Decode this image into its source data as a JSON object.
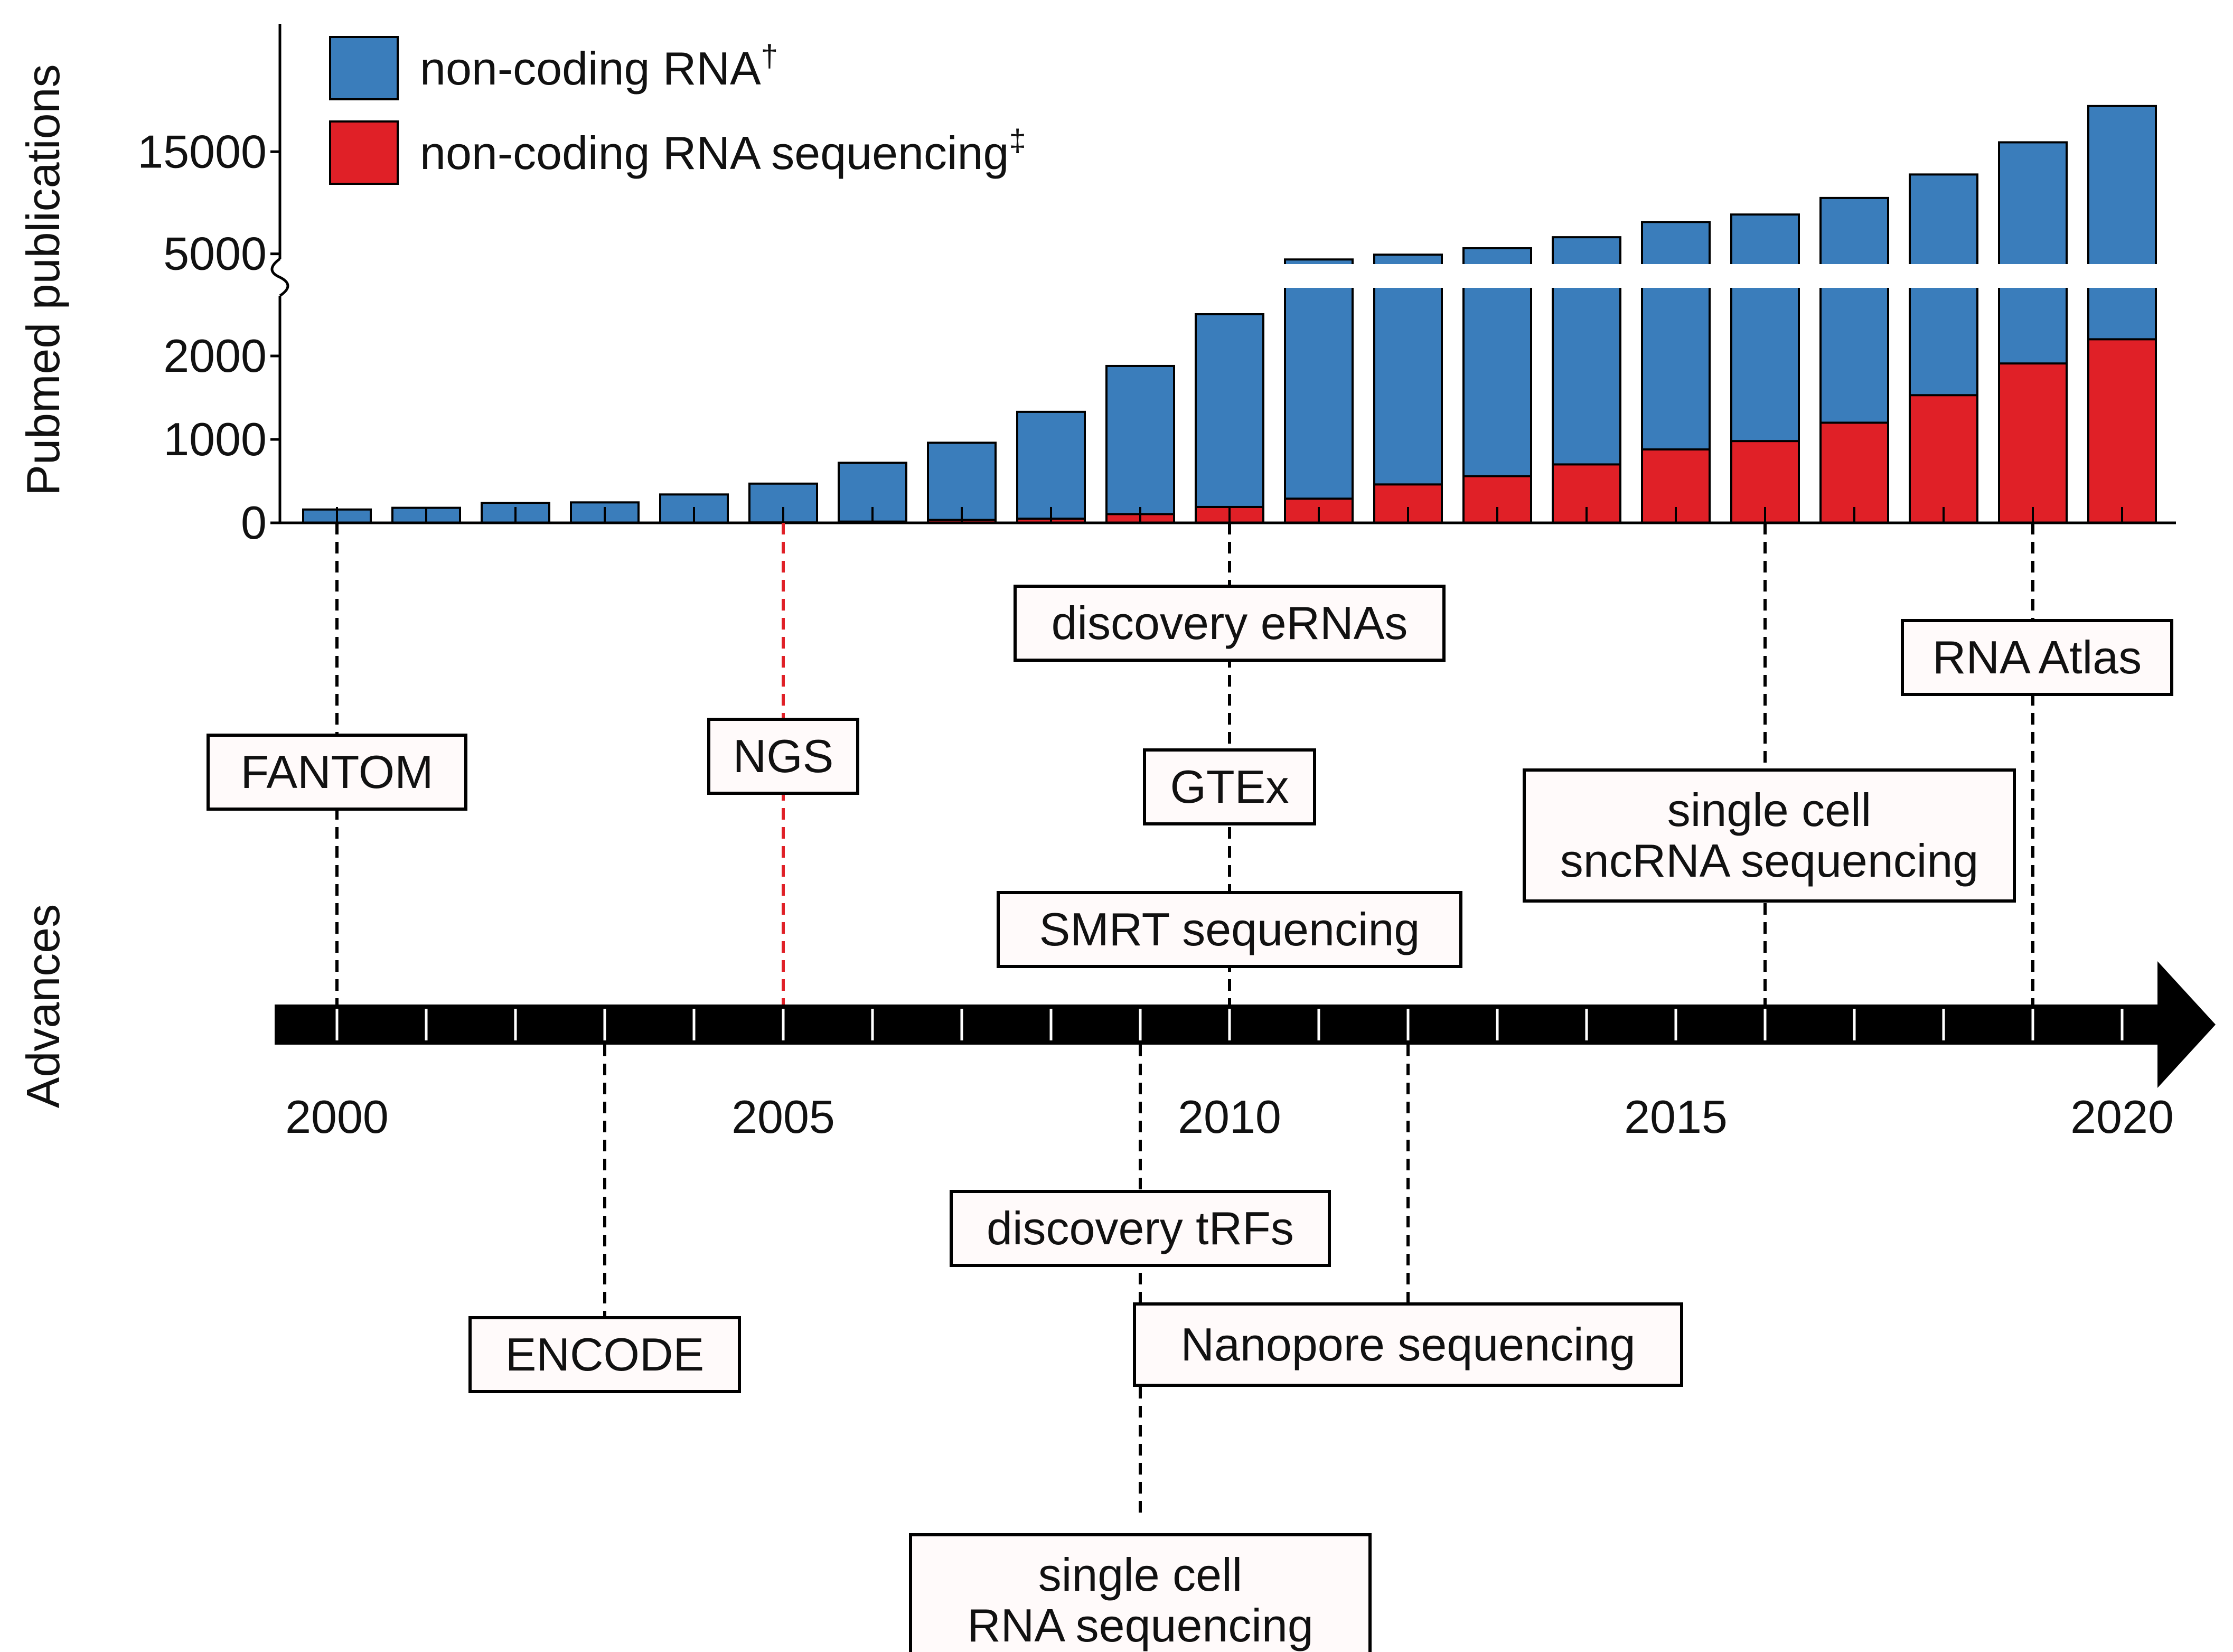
{
  "chart_data": {
    "type": "bar",
    "title": "",
    "ylabel": "Pubmed publications",
    "timeline_label": "Advances",
    "categories": [
      "2000",
      "2001",
      "2002",
      "2003",
      "2004",
      "2005",
      "2006",
      "2007",
      "2008",
      "2009",
      "2010",
      "2011",
      "2012",
      "2013",
      "2014",
      "2015",
      "2016",
      "2017",
      "2018",
      "2019",
      "2020"
    ],
    "series": [
      {
        "name": "non-coding RNA†",
        "color": "#3a7dbb",
        "values": [
          160,
          180,
          240,
          245,
          340,
          470,
          720,
          960,
          1330,
          1880,
          2690,
          4450,
          4920,
          5550,
          6630,
          8120,
          8850,
          10470,
          12770,
          15920,
          19470
        ]
      },
      {
        "name": "non-coding RNA sequencing‡",
        "color": "#e02027",
        "values": [
          0,
          0,
          0,
          0,
          0,
          5,
          15,
          35,
          50,
          105,
          190,
          290,
          460,
          560,
          700,
          880,
          980,
          1200,
          1530,
          1910,
          2200
        ]
      }
    ],
    "y_axis": {
      "ticks": [
        {
          "value": 0,
          "label": "0"
        },
        {
          "value": 1000,
          "label": "1000"
        },
        {
          "value": 2000,
          "label": "2000"
        },
        {
          "value": 5000,
          "label": "5000"
        },
        {
          "value": 15000,
          "label": "15000"
        }
      ],
      "break_between": [
        2500,
        4000
      ]
    },
    "x_axis": {
      "range": [
        2000,
        2020
      ],
      "labeled_years": [
        {
          "year": 2000,
          "label": "2000"
        },
        {
          "year": 2005,
          "label": "2005"
        },
        {
          "year": 2010,
          "label": "2010"
        },
        {
          "year": 2015,
          "label": "2015"
        },
        {
          "year": 2020,
          "label": "2020"
        }
      ]
    },
    "legend": {
      "placement": "top-left"
    },
    "annotations": [
      {
        "id": "fantom",
        "lines": [
          "FANTOM"
        ],
        "year": 2000,
        "side": "above",
        "line_color": "#000000"
      },
      {
        "id": "ngs",
        "lines": [
          "NGS"
        ],
        "year": 2005,
        "side": "above",
        "line_color": "#e02027"
      },
      {
        "id": "eRNAs",
        "lines": [
          "discovery eRNAs"
        ],
        "year": 2010,
        "side": "above",
        "line_color": "#000000"
      },
      {
        "id": "gtex",
        "lines": [
          "GTEx"
        ],
        "year": 2010,
        "side": "above",
        "line_color": "#000000"
      },
      {
        "id": "smrt",
        "lines": [
          "SMRT sequencing"
        ],
        "year": 2010,
        "side": "above",
        "line_color": "#000000"
      },
      {
        "id": "sc-sncrna",
        "lines": [
          "single cell",
          "sncRNA sequencing"
        ],
        "year": 2016,
        "side": "above",
        "line_color": "#000000"
      },
      {
        "id": "rna-atlas",
        "lines": [
          "RNA Atlas"
        ],
        "year": 2019,
        "side": "above",
        "line_color": "#000000"
      },
      {
        "id": "encode",
        "lines": [
          "ENCODE"
        ],
        "year": 2003,
        "side": "below",
        "line_color": "#000000"
      },
      {
        "id": "trfs",
        "lines": [
          "discovery tRFs"
        ],
        "year": 2009,
        "side": "below",
        "line_color": "#000000"
      },
      {
        "id": "nanopore",
        "lines": [
          "Nanopore sequencing"
        ],
        "year": 2012,
        "side": "below",
        "line_color": "#000000"
      },
      {
        "id": "sc-rna",
        "lines": [
          "single cell",
          "RNA sequencing"
        ],
        "year": 2009,
        "side": "below",
        "line_color": "#000000"
      }
    ]
  }
}
